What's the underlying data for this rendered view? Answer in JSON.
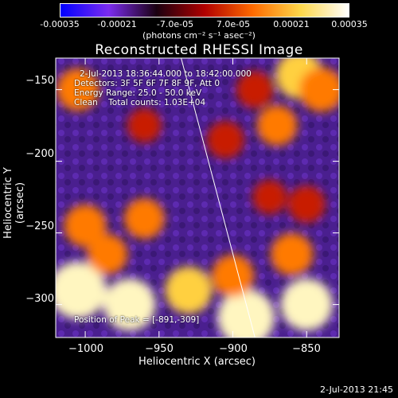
{
  "colorbar": {
    "ticks": [
      "-0.00035",
      "-0.00021",
      "-7.0e-05",
      "7.0e-05",
      "0.00021",
      "0.00035"
    ],
    "units": "(photons cm⁻² s⁻¹ asec⁻²)",
    "range": [
      -0.00035,
      0.00035
    ],
    "colors": [
      "#0000ff",
      "#7b2cf0",
      "#1a0010",
      "#b00000",
      "#ff6a00",
      "#ffd84a",
      "#ffffff"
    ]
  },
  "chart_data": {
    "type": "heatmap",
    "title": "Reconstructed RHESSI Image",
    "xlabel": "Heliocentric X (arcsec)",
    "ylabel": "Heliocentric Y (arcsec)",
    "xlim": [
      -1020,
      -828
    ],
    "ylim": [
      -323,
      -128
    ],
    "xticks": [
      -1000,
      -950,
      -900,
      -850
    ],
    "yticks": [
      -150,
      -200,
      -250,
      -300
    ],
    "xtick_labels": [
      "−1000",
      "−950",
      "−900",
      "−850"
    ],
    "ytick_labels": [
      "−150",
      "−200",
      "−250",
      "−300"
    ],
    "peak": [
      -891,
      -309
    ],
    "limb_line": [
      [
        -935,
        -128
      ],
      [
        -885,
        -323
      ]
    ],
    "bright_regions": [
      {
        "x": -1005,
        "y": -290,
        "value": 0.00035
      },
      {
        "x": -970,
        "y": -300,
        "value": 0.0003
      },
      {
        "x": -930,
        "y": -290,
        "value": 0.00025
      },
      {
        "x": -891,
        "y": -309,
        "value": 0.00035
      },
      {
        "x": -850,
        "y": -300,
        "value": 0.0003
      },
      {
        "x": -900,
        "y": -280,
        "value": 0.0002
      },
      {
        "x": -860,
        "y": -265,
        "value": 0.0002
      },
      {
        "x": -1000,
        "y": -245,
        "value": 0.0002
      },
      {
        "x": -960,
        "y": -240,
        "value": 0.00018
      },
      {
        "x": -985,
        "y": -265,
        "value": 0.00018
      },
      {
        "x": -1005,
        "y": -150,
        "value": 0.0002
      },
      {
        "x": -855,
        "y": -140,
        "value": 0.00025
      },
      {
        "x": -840,
        "y": -150,
        "value": 0.00022
      },
      {
        "x": -885,
        "y": -150,
        "value": 0.00015
      },
      {
        "x": -870,
        "y": -175,
        "value": 0.00018
      },
      {
        "x": -905,
        "y": -185,
        "value": 0.00015
      },
      {
        "x": -960,
        "y": -175,
        "value": 0.00012
      },
      {
        "x": -850,
        "y": -230,
        "value": 0.00015
      },
      {
        "x": -875,
        "y": -225,
        "value": 0.00012
      }
    ]
  },
  "info": {
    "line1": "2-Jul-2013 18:36:44.000 to 18:42:00.000",
    "line2": "Detectors: 3F 5F 6F 7F 8F 9F, Att 0",
    "line3": "Energy Range: 25.0 - 50.0 keV",
    "line4": "Clean    Total counts: 1.03E+04",
    "peak_label": "Position of Peak = [-891,-309]"
  },
  "footer": "2-Jul-2013 21:45"
}
